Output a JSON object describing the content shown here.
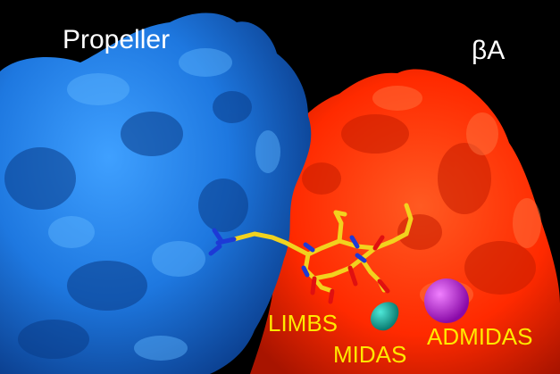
{
  "figure": {
    "background_color": "#000000",
    "propeller_color": "#1e78e0",
    "beta_a_color": "#ff2a00",
    "ligand_color": "#f2d21e",
    "label_color": "#ffe800",
    "midas_ion_color": "#16b3a6",
    "admidas_ion_color": "#b511d6"
  },
  "labels": {
    "propeller": "Propeller",
    "beta_a": "βA",
    "limbs": "LIMBS",
    "midas": "MIDAS",
    "admidas": "ADMIDAS"
  }
}
